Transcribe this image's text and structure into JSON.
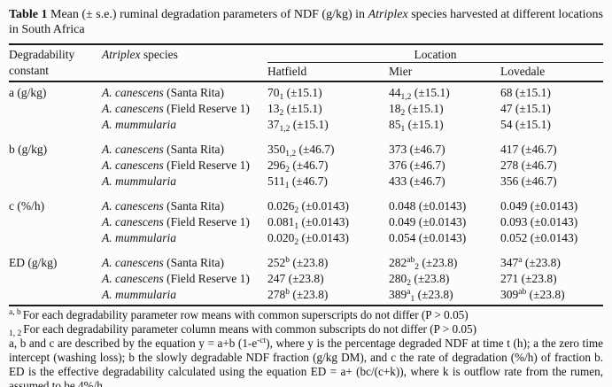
{
  "caption": {
    "parts": [
      {
        "text": "Table 1",
        "bold": true
      },
      {
        "text": " Mean (± s.e.) ruminal degradation parameters of NDF (g/kg) in "
      },
      {
        "text": "Atriplex",
        "italic": true
      },
      {
        "text": " species harvested at different locations in South Africa"
      }
    ]
  },
  "table": {
    "header": {
      "col1_line1": "Degradability",
      "col1_line2": "constant",
      "col2_italic": "Atriplex",
      "col2_rest": " species",
      "group_label": "Location",
      "locations": [
        "Hatfield",
        "Mier",
        "Lovedale"
      ]
    },
    "sections": [
      {
        "parameter": "a  (g/kg)",
        "rows": [
          {
            "species_italic": "A. canescens",
            "species_rest": " (Santa Rita)",
            "cells": [
              {
                "v": "70",
                "sup": "",
                "sub": "1",
                "se": "(±15.1)"
              },
              {
                "v": "44",
                "sup": "",
                "sub": "1,2",
                "se": "(±15.1)"
              },
              {
                "v": "68",
                "sup": "",
                "sub": "",
                "se": "(±15.1)"
              }
            ]
          },
          {
            "species_italic": "A. canescens",
            "species_rest": " (Field Reserve 1)",
            "cells": [
              {
                "v": "13",
                "sup": "",
                "sub": "2",
                "se": "(±15.1)"
              },
              {
                "v": "18",
                "sup": "",
                "sub": "2",
                "se": "(±15.1)"
              },
              {
                "v": "47",
                "sup": "",
                "sub": "",
                "se": "(±15.1)"
              }
            ]
          },
          {
            "species_italic": "A. mummularia",
            "species_rest": "",
            "cells": [
              {
                "v": "37",
                "sup": "",
                "sub": "1,2",
                "se": "(±15.1)"
              },
              {
                "v": "85",
                "sup": "",
                "sub": "1",
                "se": "(±15.1)"
              },
              {
                "v": "54",
                "sup": "",
                "sub": "",
                "se": "(±15.1)"
              }
            ]
          }
        ]
      },
      {
        "parameter": "b (g/kg)",
        "rows": [
          {
            "species_italic": "A. canescens",
            "species_rest": " (Santa Rita)",
            "cells": [
              {
                "v": "350",
                "sup": "",
                "sub": "1,2",
                "se": "(±46.7)"
              },
              {
                "v": "373",
                "sup": "",
                "sub": "",
                "se": "(±46.7)"
              },
              {
                "v": "417",
                "sup": "",
                "sub": "",
                "se": "(±46.7)"
              }
            ]
          },
          {
            "species_italic": "A. canescens",
            "species_rest": " (Field Reserve 1)",
            "cells": [
              {
                "v": "296",
                "sup": "",
                "sub": "2",
                "se": "(±46.7)"
              },
              {
                "v": "376",
                "sup": "",
                "sub": "",
                "se": "(±46.7)"
              },
              {
                "v": "278",
                "sup": "",
                "sub": "",
                "se": "(±46.7)"
              }
            ]
          },
          {
            "species_italic": "A. mummularia",
            "species_rest": "",
            "cells": [
              {
                "v": "511",
                "sup": "",
                "sub": "1",
                "se": "(±46.7)"
              },
              {
                "v": "433",
                "sup": "",
                "sub": "",
                "se": "(±46.7)"
              },
              {
                "v": "356",
                "sup": "",
                "sub": "",
                "se": "(±46.7)"
              }
            ]
          }
        ]
      },
      {
        "parameter": "c (%/h)",
        "rows": [
          {
            "species_italic": "A. canescens",
            "species_rest": " (Santa Rita)",
            "cells": [
              {
                "v": "0.026",
                "sup": "",
                "sub": "2",
                "se": "(±0.0143)"
              },
              {
                "v": "0.048",
                "sup": "",
                "sub": "",
                "se": "(±0.0143)"
              },
              {
                "v": "0.049",
                "sup": "",
                "sub": "",
                "se": "(±0.0143)"
              }
            ]
          },
          {
            "species_italic": "A. canescens",
            "species_rest": " (Field Reserve 1)",
            "cells": [
              {
                "v": "0.081",
                "sup": "",
                "sub": "1",
                "se": "(±0.0143)"
              },
              {
                "v": "0.049",
                "sup": "",
                "sub": "",
                "se": "(±0.0143)"
              },
              {
                "v": "0.093",
                "sup": "",
                "sub": "",
                "se": "(±0.0143)"
              }
            ]
          },
          {
            "species_italic": "A. mummularia",
            "species_rest": "",
            "cells": [
              {
                "v": "0.020",
                "sup": "",
                "sub": "2",
                "se": "(±0.0143)"
              },
              {
                "v": "0.054",
                "sup": "",
                "sub": "",
                "se": "(±0.0143)"
              },
              {
                "v": "0.052",
                "sup": "",
                "sub": "",
                "se": "(±0.0143)"
              }
            ]
          }
        ]
      },
      {
        "parameter": "ED (g/kg)",
        "rows": [
          {
            "species_italic": "A. canescens",
            "species_rest": " (Santa Rita)",
            "cells": [
              {
                "v": "252",
                "sup": "b",
                "sub": "",
                "se": "(±23.8)"
              },
              {
                "v": "282",
                "sup": "ab",
                "sub": "2",
                "se": "(±23.8)"
              },
              {
                "v": "347",
                "sup": "a",
                "sub": "",
                "se": "(±23.8)"
              }
            ]
          },
          {
            "species_italic": "A. canescens",
            "species_rest": " (Field Reserve 1)",
            "cells": [
              {
                "v": "247",
                "sup": "",
                "sub": "",
                "se": "(±23.8)"
              },
              {
                "v": "280",
                "sup": "",
                "sub": "2",
                "se": "(±23.8)"
              },
              {
                "v": "271",
                "sup": "",
                "sub": "",
                "se": "(±23.8)"
              }
            ]
          },
          {
            "species_italic": "A. mummularia",
            "species_rest": "",
            "cells": [
              {
                "v": "278",
                "sup": "b",
                "sub": "",
                "se": "(±23.8)"
              },
              {
                "v": "389",
                "sup": "a",
                "sub": "1",
                "se": "(±23.8)"
              },
              {
                "v": "309",
                "sup": "ab",
                "sub": "",
                "se": "(±23.8)"
              }
            ]
          }
        ]
      }
    ]
  },
  "footnotes": [
    {
      "marker": "a, b",
      "marker_style": "sup",
      "text": "For each degradability parameter row means with common superscripts do not differ (P > 0.05)"
    },
    {
      "marker": "1, 2",
      "marker_style": "sub",
      "text": "For each degradability parameter column means with common subscripts do not differ (P > 0.05)"
    },
    {
      "parts": [
        {
          "text": "a, b and c are described by the equation y = a+b (1-e"
        },
        {
          "text": "-ct",
          "style": "sup"
        },
        {
          "text": "), where y is the percentage degraded NDF at time t (h); a the zero time intercept (washing loss); b the slowly degradable NDF fraction (g/kg DM), and c the rate of degradation (%/h) of fraction b. ED is the effective degradability calculated using the equation ED = a+ (bc/(c+k)), where k is outflow rate from the rumen, assumed to be 4%/h"
        }
      ]
    }
  ]
}
